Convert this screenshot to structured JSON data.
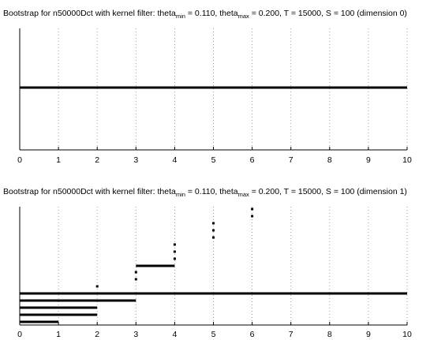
{
  "chart_data": [
    {
      "type": "barcode",
      "title_parts": {
        "prefix": "Bootstrap for n50000Dct with kernel filter: theta",
        "sub1": "min",
        "mid": " = 0.110, theta",
        "sub2": "max",
        "suffix": " = 0.200, T = 15000, S = 100 (dimension 0)"
      },
      "xlim": [
        0,
        10
      ],
      "xticks": [
        "0",
        "1",
        "2",
        "3",
        "4",
        "5",
        "6",
        "7",
        "8",
        "9",
        "10"
      ],
      "grid": "vertical-dotted",
      "intervals": [
        {
          "birth": 0,
          "death": 10
        }
      ]
    },
    {
      "type": "barcode",
      "title_parts": {
        "prefix": "Bootstrap for n50000Dct with kernel filter: theta",
        "sub1": "min",
        "mid": " = 0.110, theta",
        "sub2": "max",
        "suffix": " = 0.200, T = 15000, S = 100 (dimension 1)"
      },
      "xlim": [
        0,
        10
      ],
      "xticks": [
        "0",
        "1",
        "2",
        "3",
        "4",
        "5",
        "6",
        "7",
        "8",
        "9",
        "10"
      ],
      "grid": "vertical-dotted",
      "intervals": [
        {
          "birth": 0,
          "death": 1
        },
        {
          "birth": 0,
          "death": 2
        },
        {
          "birth": 0,
          "death": 2
        },
        {
          "birth": 0,
          "death": 3
        },
        {
          "birth": 0,
          "death": 10
        },
        {
          "birth": 2,
          "death": 2
        },
        {
          "birth": 3,
          "death": 3
        },
        {
          "birth": 3,
          "death": 3
        },
        {
          "birth": 3,
          "death": 4
        },
        {
          "birth": 4,
          "death": 4
        },
        {
          "birth": 4,
          "death": 4
        },
        {
          "birth": 4,
          "death": 4
        },
        {
          "birth": 5,
          "death": 5
        },
        {
          "birth": 5,
          "death": 5
        },
        {
          "birth": 5,
          "death": 5
        },
        {
          "birth": 6,
          "death": 6
        },
        {
          "birth": 6,
          "death": 6
        }
      ]
    }
  ]
}
